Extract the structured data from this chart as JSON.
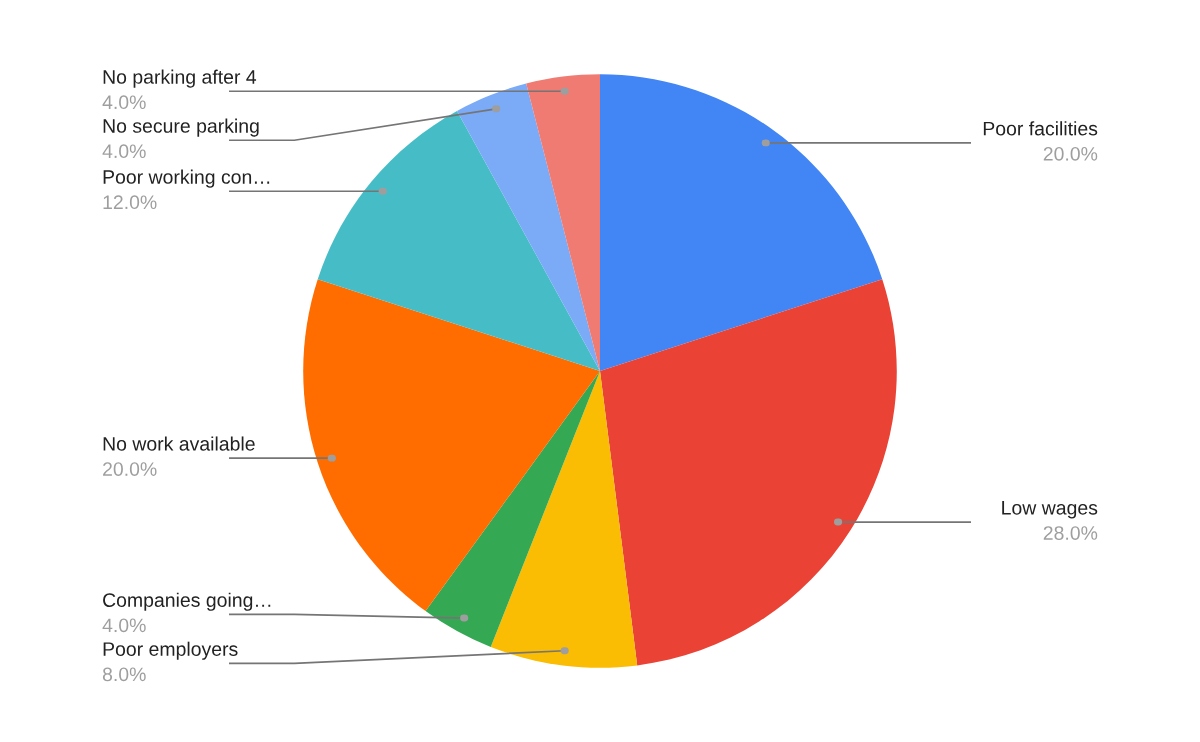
{
  "chart_data": {
    "type": "pie",
    "categories": [
      "Poor facilities",
      "Low wages",
      "Poor employers",
      "Companies going…",
      "No work available",
      "Poor working con…",
      "No secure parking",
      "No parking after 4"
    ],
    "values": [
      20,
      28,
      8,
      4,
      20,
      12,
      4,
      4
    ],
    "value_labels": [
      "20.0%",
      "28.0%",
      "8.0%",
      "4.0%",
      "20.0%",
      "12.0%",
      "4.0%",
      "4.0%"
    ],
    "colors": [
      "#4285f4",
      "#ea4335",
      "#fbbc04",
      "#34a853",
      "#ff6d01",
      "#46bdc6",
      "#7baaf7",
      "#f07b72"
    ],
    "legend": false
  }
}
